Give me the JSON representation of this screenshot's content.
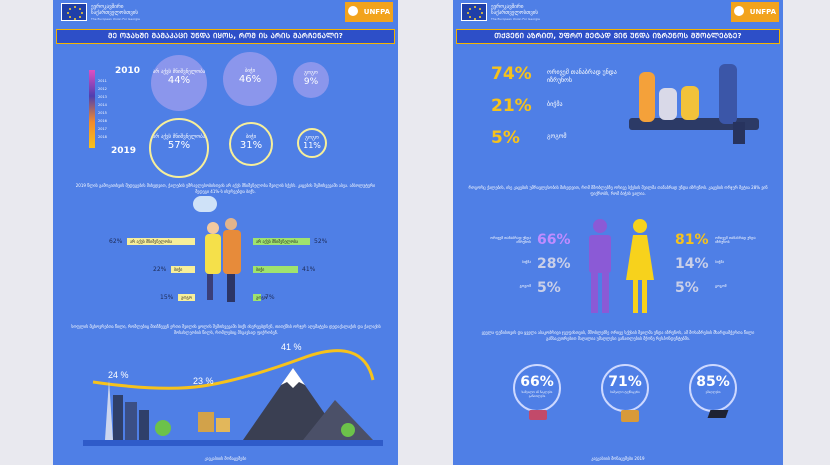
{
  "header": {
    "eu_line1": "ევროკავშირი",
    "eu_line2": "საქართველოსთვის",
    "eu_sub": "The European Union For Georgia",
    "unfpa": "UNFPA"
  },
  "left": {
    "question": "ᲛᲔ ᲝᲯᲐᲮᲨᲘ ᲛᲐᲛᲐᲙᲐᲪᲘ ᲣᲜᲓᲐ ᲘᲧᲝᲡ, ᲠᲝᲛ ᲘᲡ ᲐᲠᲘᲡ ᲛᲐᲠᲩᲔᲜᲐᲚᲘ?",
    "year_top": "2010",
    "year_bottom": "2019",
    "timeline_years": [
      "2011",
      "2012",
      "2013",
      "2014",
      "2015",
      "2016",
      "2017",
      "2018"
    ],
    "bubbles": [
      {
        "label": "არ აქვს მნიშვნელობა",
        "v2010": "44%",
        "v2019": "57%"
      },
      {
        "label": "ბიჭი",
        "v2010": "46%",
        "v2019": "31%"
      },
      {
        "label": "გოგო",
        "v2010": "9%",
        "v2019": "11%"
      }
    ],
    "paragraph1": "2019 წლის გამოკითხვის შედეგების მიხედვით, ქალების უმრავლესობისთვის არ აქვს მნიშვნელობა შვილის სქესს. კაცების შემთხვევაში ასეა. აბსოლუტური შედეგი 41%-ს ისურვებდა ბიჭს.",
    "bars_women": [
      {
        "label": "არ აქვს მნიშვნელობა",
        "pct": "62%",
        "w": 62
      },
      {
        "label": "ბიჭი",
        "pct": "22%",
        "w": 22
      },
      {
        "label": "გოგო",
        "pct": "15%",
        "w": 15
      }
    ],
    "bars_men": [
      {
        "label": "არ აქვს მნიშვნელობა",
        "pct": "52%",
        "w": 52
      },
      {
        "label": "ბიჭი",
        "pct": "41%",
        "w": 41
      },
      {
        "label": "გოგო",
        "pct": "7%",
        "w": 7
      }
    ],
    "paragraph2": "სოფლის მცხოვრებთა წილი, რომლებიც მიიჩნევენ ერთი შვილის ყოლის შემთხვევაში ბიჭს ისურვებდნენ, თითქმის ორჯერ აღემატება დედაქალაქის და ქალაქის მოსახლეობის წილს, რომლებიც მსგავსად ფიქრობენ.",
    "landscape": [
      {
        "pct": "24 %"
      },
      {
        "pct": "23 %"
      },
      {
        "pct": "41 %"
      }
    ],
    "footer": "კავკასიის მონაცემები"
  },
  "right": {
    "question": "ᲗᲥᲕᲔᲜᲘ ᲐᲖᲠᲘᲗ, ᲣᲤᲠᲝ ᲛᲔᲢᲐᲓ ᲕᲘᲜ ᲣᲜᲓᲐ ᲘᲖᲠᲣᲜᲝᲡ ᲛᲨᲝᲑᲚᲔᲑᲖᲔ?",
    "answers": [
      {
        "pct": "74%",
        "label": "ორივემ თანაბრად უნდა იზრუნოს"
      },
      {
        "pct": "21%",
        "label": "ბიჭმა"
      },
      {
        "pct": "5%",
        "label": "გოგომ"
      }
    ],
    "paragraph1": "როგორც ქალების, ისე კაცების უმრავლესობის მიხედვით, რომ მშობლებზე ორივე სქესის შვილმა თანაბრად უნდა იზრუნოს. კაცების ორჯერ მეტია 28% ვინ ფიქრობს, რომ ბიჭის ვალია.",
    "men": [
      {
        "pct": "66%",
        "label": "ორივემ თანაბრად უნდა იზრუნოს"
      },
      {
        "pct": "28%",
        "label": "ბიჭმა"
      },
      {
        "pct": "5%",
        "label": "გოგომ"
      }
    ],
    "women": [
      {
        "pct": "81%",
        "label": "ორივემ თანაბრად უნდა იზრუნოს"
      },
      {
        "pct": "14%",
        "label": "ბიჭმა"
      },
      {
        "pct": "5%",
        "label": "გოგომ"
      }
    ],
    "paragraph2": "ყველა ფენისთვის და ყველა ასაკობრივი ჯგუფისთვის, მშობლებზე ორივე სქესის შვილმა უნდა იზრუნოს, ამ მოსაზრების მხარდამჭერთა წილი განსაკუთრებით მაღალია უმაღლესი განათლების მქონე რესპონდენტებში.",
    "edu": [
      {
        "pct": "66%",
        "label": "საშუალო ან ნაკლები განათლება"
      },
      {
        "pct": "71%",
        "label": "საშუალო ტექნიკური"
      },
      {
        "pct": "85%",
        "label": "უმაღლესი"
      }
    ],
    "footer": "კავკასიის მონაცემები 2019"
  },
  "colors": {
    "bg": "#4f7fe6",
    "accent": "#f6c21c",
    "men": "#8b5ad6",
    "women": "#f7d21c"
  }
}
